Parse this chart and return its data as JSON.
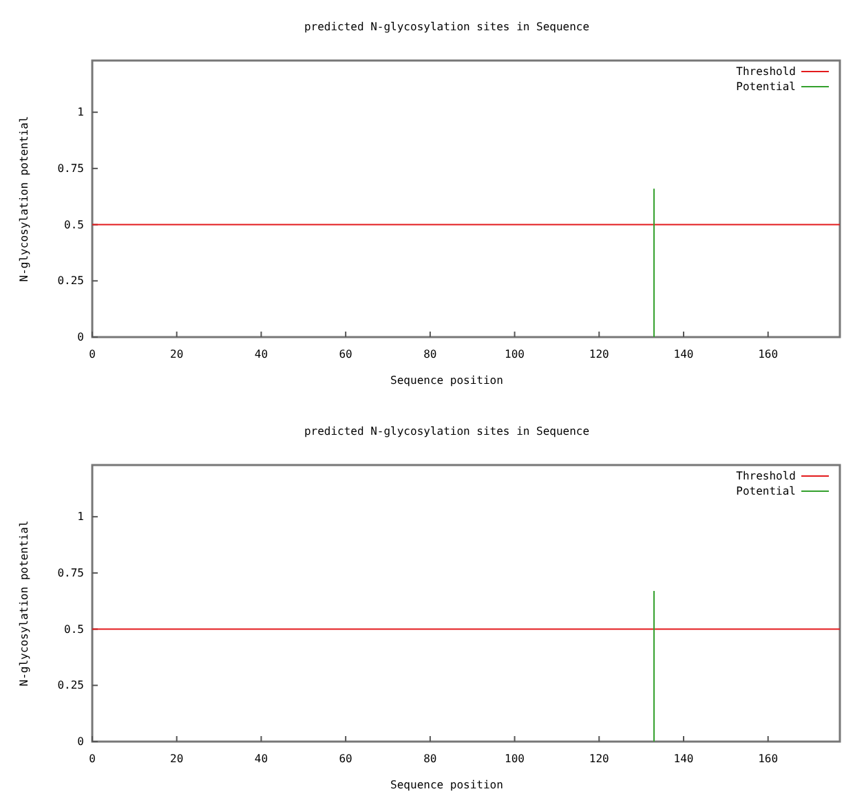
{
  "chart_data": [
    {
      "type": "line",
      "title": "predicted N-glycosylation sites in Sequence",
      "xlabel": "Sequence position",
      "ylabel": "N-glycosylation potential",
      "xlim": [
        0,
        177
      ],
      "xticks": [
        0,
        20,
        40,
        60,
        80,
        100,
        120,
        140,
        160
      ],
      "ylim": [
        0,
        1.23
      ],
      "yticks": [
        0,
        0.25,
        0.5,
        0.75,
        1
      ],
      "legend": "top right",
      "grid": false,
      "series": [
        {
          "name": "Threshold",
          "color": "#e31a1c",
          "x": [
            0,
            177
          ],
          "values": [
            0.5,
            0.5
          ]
        },
        {
          "name": "Potential",
          "color": "#33a02c",
          "type": "bar",
          "x": [
            133
          ],
          "values": [
            0.66
          ]
        }
      ]
    },
    {
      "type": "line",
      "title": "predicted N-glycosylation sites in Sequence",
      "xlabel": "Sequence position",
      "ylabel": "N-glycosylation potential",
      "xlim": [
        0,
        177
      ],
      "xticks": [
        0,
        20,
        40,
        60,
        80,
        100,
        120,
        140,
        160
      ],
      "ylim": [
        0,
        1.23
      ],
      "yticks": [
        0,
        0.25,
        0.5,
        0.75,
        1
      ],
      "legend": "top right",
      "grid": false,
      "series": [
        {
          "name": "Threshold",
          "color": "#e31a1c",
          "x": [
            0,
            177
          ],
          "values": [
            0.5,
            0.5
          ]
        },
        {
          "name": "Potential",
          "color": "#33a02c",
          "type": "bar",
          "x": [
            133
          ],
          "values": [
            0.67
          ]
        }
      ]
    }
  ]
}
